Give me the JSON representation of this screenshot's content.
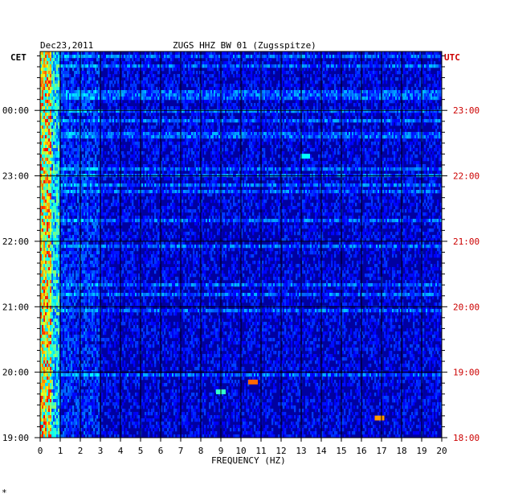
{
  "header": {
    "date": "Dec23,2011",
    "station": "ZUGS HHZ BW 01 (Zugsspitze)"
  },
  "left_zone_label": "CET",
  "right_zone_label": "UTC",
  "footer_mark": "*",
  "chart_data": {
    "type": "heatmap",
    "title": "ZUGS HHZ BW 01 (Zugsspitze)",
    "xlabel": "FREQUENCY (HZ)",
    "ylabel": "",
    "xlim": [
      0,
      20
    ],
    "x_ticks": [
      "0",
      "1",
      "2",
      "3",
      "4",
      "5",
      "6",
      "7",
      "8",
      "9",
      "10",
      "11",
      "12",
      "13",
      "14",
      "15",
      "16",
      "17",
      "18",
      "19",
      "20"
    ],
    "y_ticks_cet": [
      "19:00",
      "20:00",
      "21:00",
      "22:00",
      "23:00",
      "00:00"
    ],
    "y_ticks_utc": [
      "18:00",
      "19:00",
      "20:00",
      "21:00",
      "22:00",
      "23:00"
    ],
    "time_range_cet_hours": [
      19,
      24.9
    ],
    "grid": true,
    "colormap": [
      "#00007f",
      "#0000ff",
      "#00ffff",
      "#ffff00",
      "#ff0000"
    ],
    "background_color": "#0000a0",
    "events": [
      {
        "freq": 10.6,
        "time_cet": "19:51",
        "intensity": 0.9
      },
      {
        "freq": 9.0,
        "time_cet": "19:42",
        "intensity": 0.55
      },
      {
        "freq": 16.9,
        "time_cet": "19:18",
        "intensity": 0.85
      },
      {
        "freq": 13.2,
        "time_cet": "23:18",
        "intensity": 0.5
      }
    ]
  }
}
